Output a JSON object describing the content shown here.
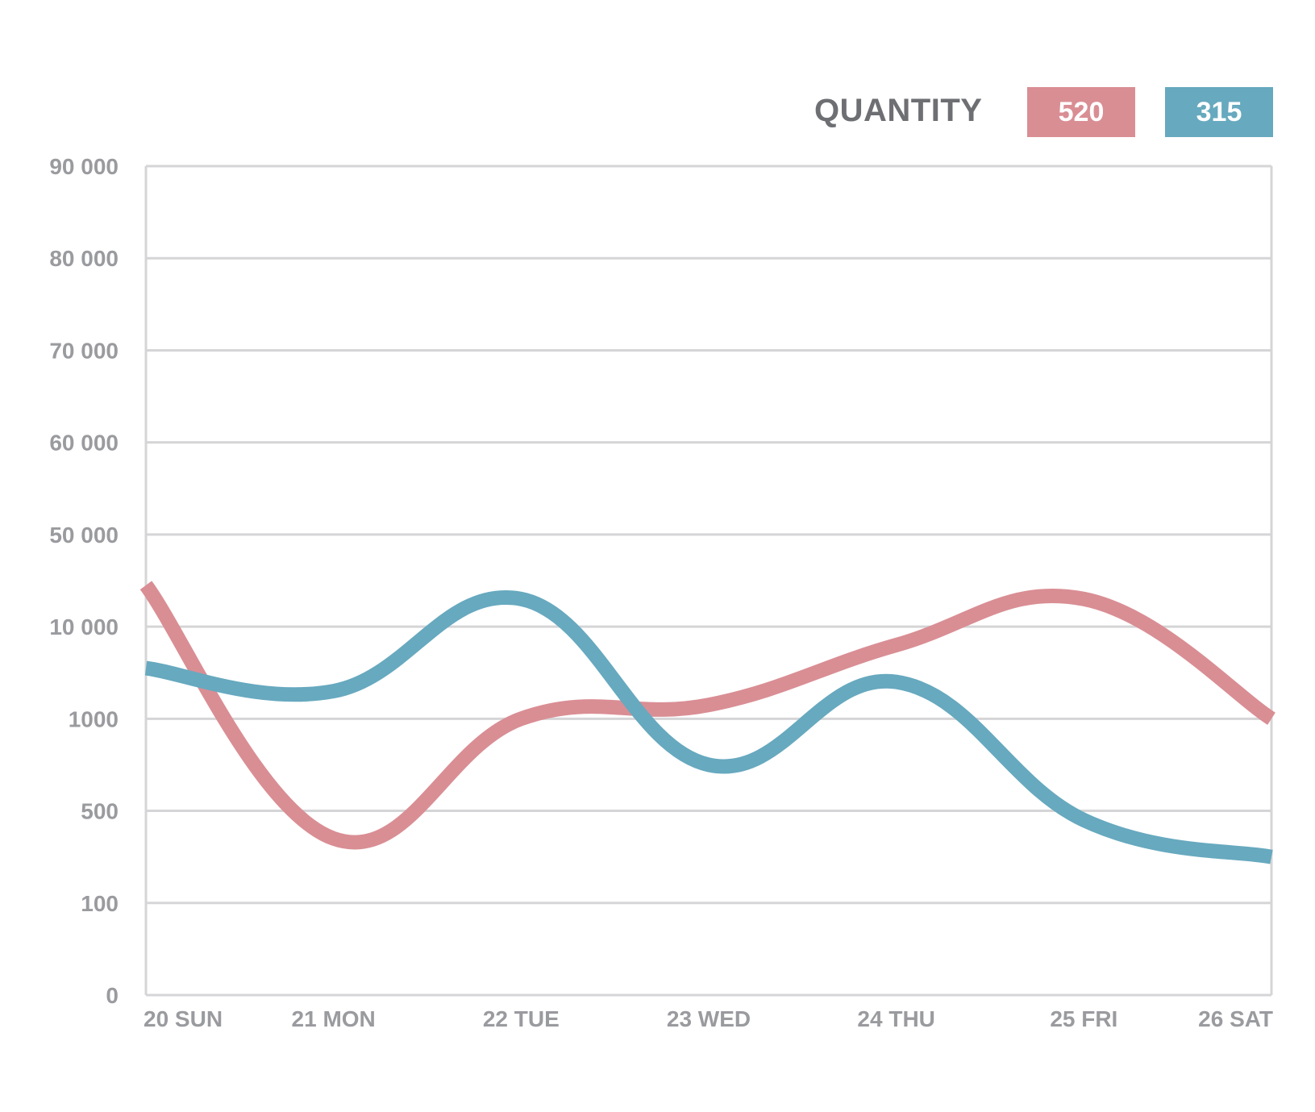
{
  "chart_data": {
    "type": "line",
    "title": "",
    "xlabel": "",
    "ylabel": "",
    "y_tick_labels": [
      "0",
      "100",
      "500",
      "1000",
      "10 000",
      "50 000",
      "60 000",
      "70 000",
      "80 000",
      "90 000"
    ],
    "y_scale": "categorical-nonlinear",
    "categories": [
      "20 SUN",
      "21 MON",
      "22 TUE",
      "23 WED",
      "24 THU",
      "25 FRI",
      "26 SAT"
    ],
    "legend": {
      "title": "QUANTITY",
      "placement": "top-right",
      "entries": [
        {
          "label": "520",
          "color": "#d98e94"
        },
        {
          "label": "315",
          "color": "#67a9bf"
        }
      ]
    },
    "grid": true,
    "series": [
      {
        "color": "#d98e94",
        "values_level": [
          4.45,
          1.7,
          3.0,
          3.15,
          3.8,
          4.3,
          3.0
        ],
        "note_level_scale": "level = index of y tick (0=0,1=100,2=500,3=1000,4=10 000,5=50 000...)"
      },
      {
        "color": "#67a9bf",
        "values_level": [
          3.55,
          3.3,
          4.3,
          2.5,
          3.4,
          1.9,
          1.5
        ]
      }
    ]
  }
}
